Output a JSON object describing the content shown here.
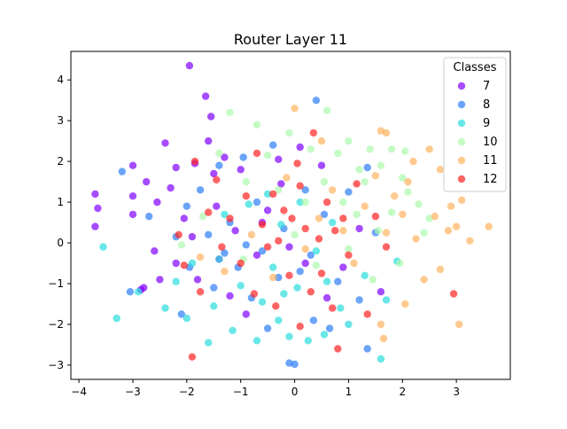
{
  "chart_data": {
    "type": "scatter",
    "title": "Router Layer 11",
    "xlabel": "",
    "ylabel": "",
    "xlim": [
      -4.15,
      4.0
    ],
    "ylim": [
      -3.35,
      4.7
    ],
    "xticks": [
      -4,
      -3,
      -2,
      -1,
      0,
      1,
      2,
      3
    ],
    "yticks": [
      -3,
      -2,
      -1,
      0,
      1,
      2,
      3,
      4
    ],
    "grid": false,
    "legend": {
      "title": "Classes",
      "placement": "top-right"
    },
    "marker_alpha": 0.7,
    "series": [
      {
        "name": "7",
        "color": "#8000ff",
        "points": [
          [
            -1.95,
            4.35
          ],
          [
            -1.65,
            3.6
          ],
          [
            -1.55,
            3.1
          ],
          [
            -3.7,
            1.2
          ],
          [
            -3.65,
            0.85
          ],
          [
            -3.7,
            0.4
          ],
          [
            -3.0,
            1.9
          ],
          [
            -3.0,
            1.15
          ],
          [
            -3.0,
            0.7
          ],
          [
            -2.75,
            1.5
          ],
          [
            -2.55,
            1.0
          ],
          [
            -2.8,
            -1.1
          ],
          [
            -2.85,
            -1.15
          ],
          [
            -2.5,
            -0.9
          ],
          [
            -2.4,
            2.45
          ],
          [
            -2.3,
            1.35
          ],
          [
            -2.2,
            1.85
          ],
          [
            -2.2,
            -0.5
          ],
          [
            -2.05,
            0.6
          ],
          [
            -1.9,
            0.15
          ],
          [
            -1.85,
            1.95
          ],
          [
            -1.8,
            -0.9
          ],
          [
            -1.6,
            2.5
          ],
          [
            -1.5,
            1.7
          ],
          [
            -1.45,
            0.9
          ],
          [
            -1.3,
            2.1
          ],
          [
            -1.2,
            -1.3
          ],
          [
            -1.1,
            0.3
          ],
          [
            -1.0,
            1.8
          ],
          [
            -0.9,
            -1.75
          ],
          [
            -0.7,
            -0.3
          ],
          [
            -0.5,
            0.8
          ],
          [
            -0.3,
            2.05
          ],
          [
            -0.25,
            1.45
          ],
          [
            -0.1,
            -0.1
          ],
          [
            0.1,
            2.35
          ],
          [
            0.2,
            -0.5
          ],
          [
            0.5,
            1.9
          ],
          [
            0.6,
            -1.35
          ],
          [
            0.9,
            -0.6
          ],
          [
            1.2,
            0.35
          ],
          [
            1.6,
            -1.2
          ],
          [
            -2.6,
            -0.2
          ],
          [
            -1.4,
            -0.4
          ],
          [
            -0.6,
            0.5
          ]
        ]
      },
      {
        "name": "8",
        "color": "#2c7ef7",
        "points": [
          [
            -3.2,
            1.75
          ],
          [
            -2.7,
            0.65
          ],
          [
            -2.2,
            0.15
          ],
          [
            -2.1,
            -1.75
          ],
          [
            -1.95,
            -0.6
          ],
          [
            -1.75,
            1.3
          ],
          [
            -1.6,
            0.2
          ],
          [
            -1.5,
            -1.1
          ],
          [
            -1.4,
            1.9
          ],
          [
            -1.3,
            -0.25
          ],
          [
            -1.2,
            0.5
          ],
          [
            -1.05,
            -0.6
          ],
          [
            -0.95,
            2.1
          ],
          [
            -0.8,
            -1.35
          ],
          [
            -0.7,
            1.0
          ],
          [
            -0.6,
            -0.2
          ],
          [
            -0.5,
            -2.1
          ],
          [
            -0.4,
            2.4
          ],
          [
            -0.3,
            -0.85
          ],
          [
            -0.2,
            0.35
          ],
          [
            -0.1,
            -2.95
          ],
          [
            0.0,
            -2.98
          ],
          [
            0.1,
            -0.7
          ],
          [
            0.2,
            1.3
          ],
          [
            0.35,
            -1.9
          ],
          [
            0.4,
            3.5
          ],
          [
            0.55,
            0.7
          ],
          [
            0.65,
            -2.1
          ],
          [
            0.8,
            -0.95
          ],
          [
            1.0,
            1.25
          ],
          [
            1.2,
            -1.4
          ],
          [
            1.35,
            -2.6
          ],
          [
            1.35,
            1.85
          ],
          [
            1.5,
            0.25
          ],
          [
            -3.05,
            -1.2
          ],
          [
            -2.0,
            0.9
          ],
          [
            -0.9,
            -0.05
          ],
          [
            0.3,
            -0.3
          ]
        ]
      },
      {
        "name": "9",
        "color": "#2adddd",
        "points": [
          [
            -3.55,
            -0.1
          ],
          [
            -3.3,
            -1.85
          ],
          [
            -2.9,
            -1.2
          ],
          [
            -2.4,
            -1.6
          ],
          [
            -2.2,
            -0.95
          ],
          [
            -2.0,
            -1.85
          ],
          [
            -1.9,
            -0.5
          ],
          [
            -1.6,
            -2.45
          ],
          [
            -1.5,
            -1.55
          ],
          [
            -1.4,
            -0.4
          ],
          [
            -1.3,
            0.7
          ],
          [
            -1.15,
            -2.15
          ],
          [
            -1.0,
            -1.05
          ],
          [
            -0.85,
            0.95
          ],
          [
            -0.7,
            -2.4
          ],
          [
            -0.6,
            -1.45
          ],
          [
            -0.5,
            1.2
          ],
          [
            -0.4,
            -0.6
          ],
          [
            -0.3,
            -1.9
          ],
          [
            -0.25,
            0.45
          ],
          [
            -0.1,
            -2.3
          ],
          [
            0.05,
            -1.1
          ],
          [
            0.1,
            1.0
          ],
          [
            0.25,
            -2.4
          ],
          [
            0.4,
            -0.2
          ],
          [
            0.55,
            -2.25
          ],
          [
            0.7,
            0.5
          ],
          [
            0.85,
            -1.6
          ],
          [
            1.0,
            -2.0
          ],
          [
            1.3,
            -0.8
          ],
          [
            1.6,
            -2.85
          ],
          [
            1.7,
            -1.4
          ],
          [
            1.9,
            -0.45
          ],
          [
            -0.2,
            -1.25
          ],
          [
            0.6,
            -0.95
          ]
        ]
      },
      {
        "name": "10",
        "color": "#acfaac",
        "points": [
          [
            -1.2,
            3.2
          ],
          [
            -0.7,
            2.9
          ],
          [
            -0.5,
            2.15
          ],
          [
            -0.1,
            2.7
          ],
          [
            0.3,
            2.3
          ],
          [
            0.6,
            3.25
          ],
          [
            0.8,
            2.2
          ],
          [
            1.0,
            2.5
          ],
          [
            1.2,
            1.8
          ],
          [
            1.4,
            2.3
          ],
          [
            1.6,
            1.9
          ],
          [
            1.8,
            2.3
          ],
          [
            2.0,
            1.6
          ],
          [
            2.1,
            1.25
          ],
          [
            2.3,
            0.95
          ],
          [
            2.4,
            0.25
          ],
          [
            2.5,
            0.6
          ],
          [
            -1.4,
            2.2
          ],
          [
            -0.9,
            1.5
          ],
          [
            -0.3,
            1.3
          ],
          [
            0.2,
            1.0
          ],
          [
            0.55,
            1.5
          ],
          [
            0.9,
            1.0
          ],
          [
            1.15,
            0.7
          ],
          [
            1.3,
            1.5
          ],
          [
            1.55,
            0.3
          ],
          [
            1.8,
            0.75
          ],
          [
            1.95,
            -0.5
          ],
          [
            2.05,
            2.25
          ],
          [
            -2.1,
            -0.05
          ],
          [
            -1.7,
            0.65
          ],
          [
            -0.95,
            -0.4
          ],
          [
            0.4,
            -0.55
          ],
          [
            1.0,
            -0.15
          ],
          [
            1.45,
            -0.9
          ],
          [
            0.0,
            0.2
          ]
        ]
      },
      {
        "name": "11",
        "color": "#ffb360",
        "points": [
          [
            0.0,
            3.3
          ],
          [
            0.5,
            2.5
          ],
          [
            1.6,
            2.75
          ],
          [
            1.7,
            2.7
          ],
          [
            2.1,
            1.5
          ],
          [
            2.2,
            2.0
          ],
          [
            2.5,
            2.3
          ],
          [
            2.7,
            1.8
          ],
          [
            2.9,
            0.9
          ],
          [
            3.0,
            0.4
          ],
          [
            3.1,
            1.05
          ],
          [
            3.25,
            0.05
          ],
          [
            3.6,
            0.4
          ],
          [
            3.05,
            -2.0
          ],
          [
            2.7,
            -0.65
          ],
          [
            2.4,
            -0.9
          ],
          [
            2.05,
            -1.5
          ],
          [
            1.65,
            -2.35
          ],
          [
            1.6,
            -2.0
          ],
          [
            2.25,
            0.1
          ],
          [
            2.0,
            0.7
          ],
          [
            1.85,
            1.15
          ],
          [
            1.7,
            0.25
          ],
          [
            1.5,
            1.65
          ],
          [
            1.3,
            0.9
          ],
          [
            1.1,
            -0.5
          ],
          [
            0.9,
            0.3
          ],
          [
            0.7,
            1.3
          ],
          [
            0.45,
            0.6
          ],
          [
            0.2,
            -0.15
          ],
          [
            -0.15,
            1.6
          ],
          [
            -0.4,
            -0.85
          ],
          [
            -0.8,
            0.2
          ],
          [
            -1.3,
            -0.7
          ],
          [
            -1.75,
            -0.35
          ],
          [
            2.6,
            0.65
          ],
          [
            2.85,
            0.3
          ]
        ]
      },
      {
        "name": "12",
        "color": "#ff2222",
        "points": [
          [
            -1.9,
            -2.8
          ],
          [
            -1.85,
            2.0
          ],
          [
            -2.15,
            0.2
          ],
          [
            -2.05,
            -0.55
          ],
          [
            -1.75,
            -1.2
          ],
          [
            -1.6,
            0.75
          ],
          [
            -1.45,
            1.55
          ],
          [
            -1.35,
            -0.1
          ],
          [
            -1.2,
            0.6
          ],
          [
            -1.0,
            -0.5
          ],
          [
            -0.9,
            1.15
          ],
          [
            -0.75,
            -1.25
          ],
          [
            -0.7,
            2.2
          ],
          [
            -0.6,
            0.45
          ],
          [
            -0.5,
            -0.1
          ],
          [
            -0.4,
            1.2
          ],
          [
            -0.35,
            -1.55
          ],
          [
            -0.2,
            0.8
          ],
          [
            -0.1,
            -0.8
          ],
          [
            -0.05,
            0.6
          ],
          [
            0.05,
            1.95
          ],
          [
            0.1,
            -2.05
          ],
          [
            0.2,
            0.35
          ],
          [
            0.3,
            -1.2
          ],
          [
            0.35,
            2.7
          ],
          [
            0.45,
            0.1
          ],
          [
            0.5,
            -0.75
          ],
          [
            0.6,
            1.0
          ],
          [
            0.7,
            -1.6
          ],
          [
            0.8,
            -2.6
          ],
          [
            0.9,
            0.6
          ],
          [
            1.0,
            -0.3
          ],
          [
            1.15,
            1.45
          ],
          [
            1.35,
            -1.75
          ],
          [
            1.5,
            0.65
          ],
          [
            1.7,
            -0.1
          ],
          [
            2.95,
            -1.25
          ],
          [
            0.1,
            1.4
          ],
          [
            -0.3,
            0.05
          ],
          [
            0.75,
            0.3
          ]
        ]
      }
    ]
  }
}
